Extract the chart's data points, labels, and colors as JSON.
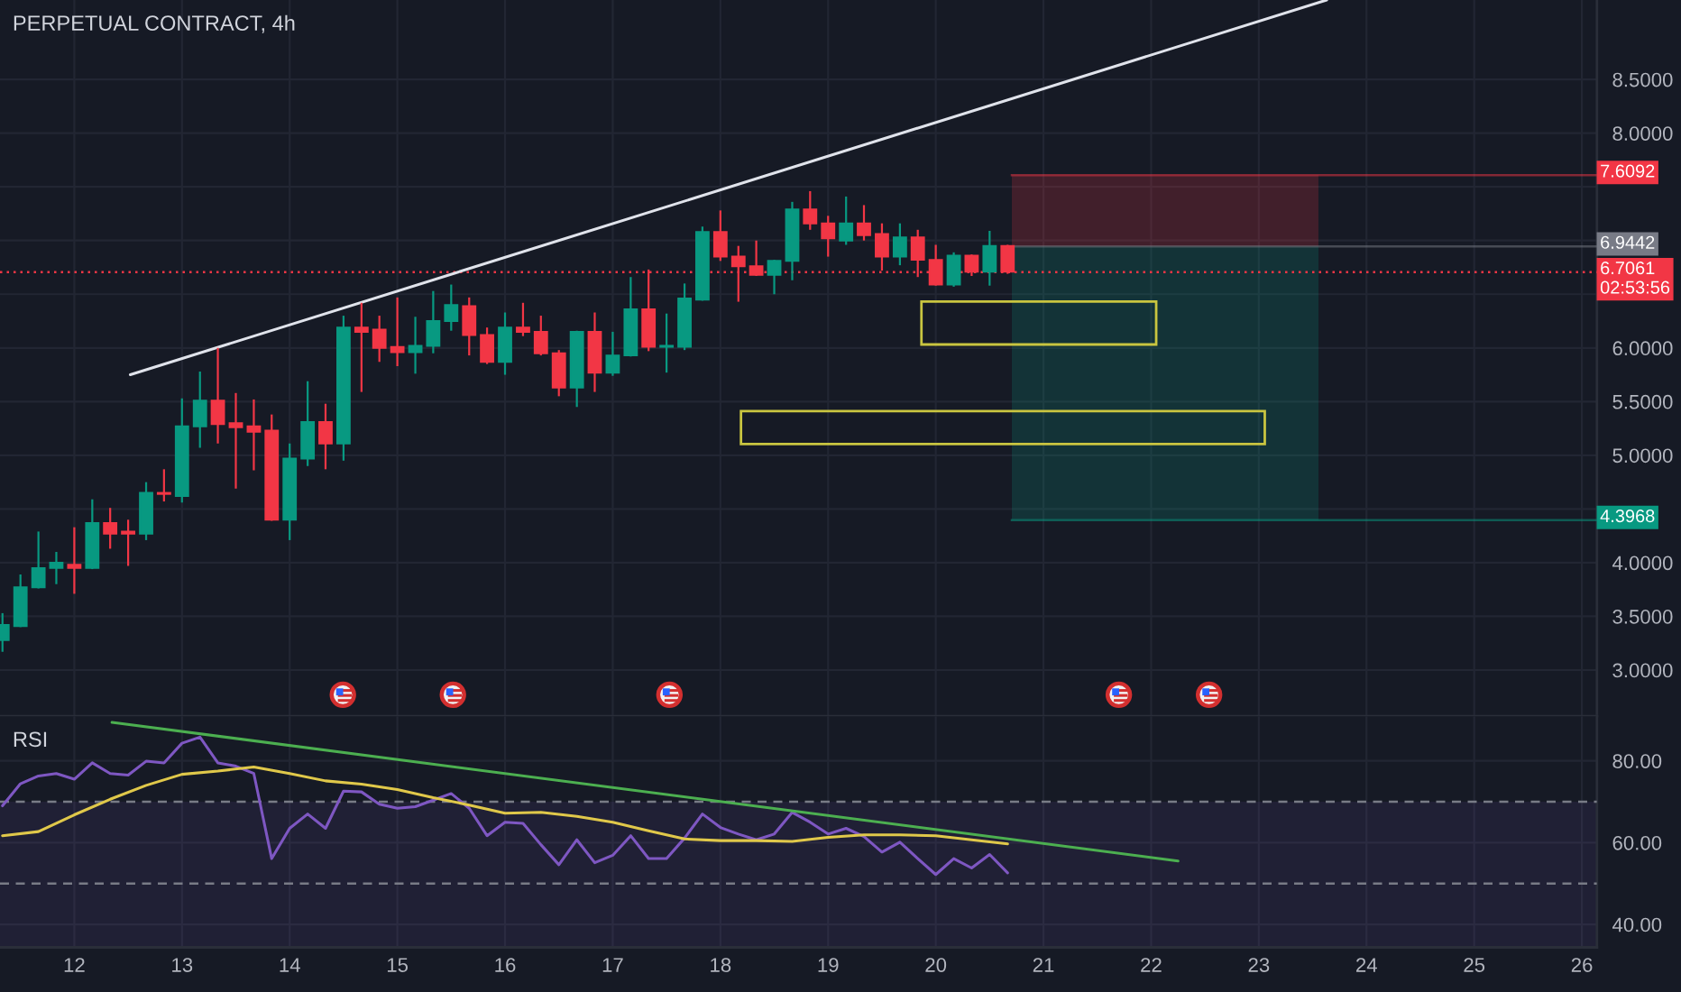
{
  "chart_data": [
    {
      "type": "candlestick",
      "title": "PERPETUAL CONTRACT, 4h",
      "x": [
        11.333,
        11.5,
        11.667,
        11.833,
        12,
        12.167,
        12.333,
        12.5,
        12.667,
        12.833,
        13,
        13.167,
        13.333,
        13.5,
        13.667,
        13.833,
        14,
        14.167,
        14.333,
        14.5,
        14.667,
        14.833,
        15,
        15.167,
        15.333,
        15.5,
        15.667,
        15.833,
        16,
        16.167,
        16.333,
        16.5,
        16.667,
        16.833,
        17,
        17.167,
        17.333,
        17.5,
        17.667,
        17.833,
        18,
        18.167,
        18.333,
        18.5,
        18.667,
        18.833,
        19,
        19.167,
        19.333,
        19.5,
        19.667,
        19.833,
        20,
        20.167,
        20.333,
        20.5,
        20.667
      ],
      "ohlc": [
        [
          3.28,
          3.53,
          3.17,
          3.42
        ],
        [
          3.41,
          3.89,
          3.4,
          3.77
        ],
        [
          3.77,
          4.29,
          3.76,
          3.95
        ],
        [
          3.95,
          4.1,
          3.8,
          4.0
        ],
        [
          3.98,
          4.33,
          3.71,
          3.95
        ],
        [
          3.95,
          4.59,
          3.94,
          4.37
        ],
        [
          4.37,
          4.51,
          4.13,
          4.27
        ],
        [
          4.29,
          4.4,
          3.97,
          4.27
        ],
        [
          4.27,
          4.75,
          4.21,
          4.65
        ],
        [
          4.65,
          4.87,
          4.57,
          4.64
        ],
        [
          4.62,
          5.53,
          4.56,
          5.27
        ],
        [
          5.27,
          5.78,
          5.07,
          5.51
        ],
        [
          5.51,
          6.0,
          5.11,
          5.29
        ],
        [
          5.3,
          5.58,
          4.69,
          5.26
        ],
        [
          5.27,
          5.52,
          4.86,
          5.22
        ],
        [
          5.23,
          5.38,
          4.39,
          4.4
        ],
        [
          4.4,
          5.11,
          4.21,
          4.97
        ],
        [
          4.97,
          5.69,
          4.9,
          5.31
        ],
        [
          5.31,
          5.48,
          4.87,
          5.11
        ],
        [
          5.11,
          6.3,
          4.95,
          6.19
        ],
        [
          6.19,
          6.42,
          5.59,
          6.15
        ],
        [
          6.17,
          6.3,
          5.87,
          6.0
        ],
        [
          6.01,
          6.47,
          5.83,
          5.96
        ],
        [
          5.96,
          6.29,
          5.76,
          6.02
        ],
        [
          6.02,
          6.53,
          5.95,
          6.25
        ],
        [
          6.25,
          6.59,
          6.16,
          6.4
        ],
        [
          6.39,
          6.47,
          5.93,
          6.12
        ],
        [
          6.12,
          6.19,
          5.85,
          5.87
        ],
        [
          5.87,
          6.33,
          5.75,
          6.19
        ],
        [
          6.19,
          6.42,
          6.11,
          6.15
        ],
        [
          6.15,
          6.3,
          5.93,
          5.95
        ],
        [
          5.95,
          5.98,
          5.55,
          5.63
        ],
        [
          5.63,
          6.16,
          5.45,
          6.15
        ],
        [
          6.15,
          6.33,
          5.59,
          5.77
        ],
        [
          5.77,
          6.15,
          5.74,
          5.93
        ],
        [
          5.93,
          6.66,
          5.92,
          6.36
        ],
        [
          6.36,
          6.73,
          5.97,
          6.01
        ],
        [
          6.01,
          6.32,
          5.77,
          6.02
        ],
        [
          6.01,
          6.6,
          5.98,
          6.46
        ],
        [
          6.45,
          7.13,
          6.44,
          7.08
        ],
        [
          7.08,
          7.28,
          6.81,
          6.85
        ],
        [
          6.85,
          6.95,
          6.43,
          6.76
        ],
        [
          6.76,
          7.0,
          6.67,
          6.68
        ],
        [
          6.68,
          6.82,
          6.5,
          6.81
        ],
        [
          6.81,
          7.36,
          6.63,
          7.29
        ],
        [
          7.29,
          7.46,
          7.1,
          7.16
        ],
        [
          7.16,
          7.23,
          6.85,
          7.02
        ],
        [
          7.0,
          7.41,
          6.96,
          7.16
        ],
        [
          7.16,
          7.33,
          7.0,
          7.05
        ],
        [
          7.06,
          7.16,
          6.72,
          6.85
        ],
        [
          6.85,
          7.16,
          6.77,
          7.03
        ],
        [
          7.03,
          7.1,
          6.66,
          6.82
        ],
        [
          6.82,
          6.96,
          6.58,
          6.59
        ],
        [
          6.59,
          6.89,
          6.57,
          6.86
        ],
        [
          6.86,
          6.87,
          6.67,
          6.71
        ],
        [
          6.71,
          7.09,
          6.58,
          6.95
        ],
        [
          6.95,
          6.96,
          6.69,
          6.71
        ]
      ],
      "colors": [
        "#089981",
        "#089981",
        "#089981",
        "#089981",
        "#f23645",
        "#089981",
        "#f23645",
        "#f23645",
        "#089981",
        "#f23645",
        "#089981",
        "#089981",
        "#f23645",
        "#f23645",
        "#f23645",
        "#f23645",
        "#089981",
        "#089981",
        "#f23645",
        "#089981",
        "#f23645",
        "#f23645",
        "#f23645",
        "#089981",
        "#089981",
        "#089981",
        "#f23645",
        "#f23645",
        "#089981",
        "#f23645",
        "#f23645",
        "#f23645",
        "#089981",
        "#f23645",
        "#089981",
        "#089981",
        "#f23645",
        "#089981",
        "#089981",
        "#089981",
        "#f23645",
        "#f23645",
        "#f23645",
        "#089981",
        "#089981",
        "#f23645",
        "#f23645",
        "#089981",
        "#f23645",
        "#f23645",
        "#089981",
        "#f23645",
        "#f23645",
        "#089981",
        "#f23645",
        "#089981",
        "#f23645"
      ],
      "series": [
        {
          "type": "line",
          "color": "#e0e3eb",
          "x": [
            12.52,
            23.63
          ],
          "values": [
            5.75,
            9.24
          ]
        }
      ],
      "xlim": [
        11.31,
        26.14
      ],
      "xticks": [
        12,
        13,
        14,
        15,
        16,
        17,
        18,
        19,
        20,
        21,
        22,
        23,
        24,
        25,
        26
      ],
      "ylim": [
        2.57,
        9.24
      ],
      "yticks": [
        {
          "value": 3,
          "label": "3.0000"
        },
        {
          "value": 3.5,
          "label": "3.5000"
        },
        {
          "value": 4,
          "label": "4.0000"
        },
        {
          "value": 4.5,
          "label": null
        },
        {
          "value": 5,
          "label": "5.0000"
        },
        {
          "value": 5.5,
          "label": "5.5000"
        },
        {
          "value": 6,
          "label": "6.0000"
        },
        {
          "value": 6.5,
          "label": null
        },
        {
          "value": 7,
          "label": null
        },
        {
          "value": 7.5,
          "label": null
        },
        {
          "value": 8,
          "label": "8.0000"
        },
        {
          "value": 8.5,
          "label": "8.5000"
        }
      ],
      "bands": [
        {
          "axis": "y",
          "from": 6.9442,
          "to": 7.6092,
          "color": "#f23645"
        },
        {
          "axis": "y",
          "from": 4.3968,
          "to": 6.9442,
          "color": "#089981"
        }
      ],
      "ref_lines": [
        {
          "axis": "y",
          "value": 7.6092,
          "label": "7.6092",
          "color": "#f23645"
        },
        {
          "axis": "y",
          "value": 6.9442,
          "label": "6.9442",
          "color": "#787b86"
        },
        {
          "axis": "y",
          "value": 6.7061,
          "label": "6.7061\n02:53:56",
          "color": "#f23645",
          "line_style": "dotted"
        },
        {
          "axis": "y",
          "value": 4.3968,
          "label": "4.3968",
          "color": "#089981"
        }
      ],
      "grid": true,
      "tick_labels": "y"
    },
    {
      "type": "line",
      "title": "RSI",
      "x": [
        11.333,
        11.5,
        11.667,
        11.833,
        12,
        12.167,
        12.333,
        12.5,
        12.667,
        12.833,
        13,
        13.167,
        13.333,
        13.5,
        13.667,
        13.833,
        14,
        14.167,
        14.333,
        14.5,
        14.667,
        14.833,
        15,
        15.167,
        15.333,
        15.5,
        15.667,
        15.833,
        16,
        16.167,
        16.333,
        16.5,
        16.667,
        16.833,
        17,
        17.167,
        17.333,
        17.5,
        17.667,
        17.833,
        18,
        18.167,
        18.333,
        18.5,
        18.667,
        18.833,
        19,
        19.167,
        19.333,
        19.5,
        19.667,
        19.833,
        20,
        20.167,
        20.333,
        20.5,
        20.667
      ],
      "series": [
        {
          "color": "#7e57c2",
          "values": [
            69.0,
            74.4,
            76.3,
            76.9,
            75.5,
            79.5,
            76.9,
            76.5,
            79.9,
            79.5,
            84.3,
            85.8,
            79.5,
            78.7,
            76.9,
            56.1,
            63.5,
            67.0,
            63.5,
            72.6,
            72.4,
            69.4,
            68.4,
            68.8,
            70.4,
            72.0,
            68.4,
            61.7,
            65.0,
            64.7,
            59.5,
            54.6,
            60.7,
            55.1,
            56.9,
            61.7,
            56.1,
            56.1,
            61.1,
            67.0,
            63.7,
            62.1,
            60.7,
            62.1,
            67.4,
            65.0,
            62.1,
            63.5,
            61.5,
            57.7,
            60.1,
            56.1,
            52.2,
            56.1,
            53.8,
            57.1,
            52.6
          ]
        },
        {
          "color": "#e0c84a",
          "x": [
            11.333,
            11.667,
            12,
            12.333,
            12.667,
            13,
            13.333,
            13.667,
            14,
            14.333,
            14.667,
            15,
            15.333,
            15.667,
            16,
            16.333,
            16.667,
            17,
            17.333,
            17.667,
            18,
            18.333,
            18.667,
            19,
            19.333,
            19.667,
            20,
            20.333,
            20.667
          ],
          "values": [
            61.7,
            62.7,
            66.8,
            70.6,
            74.0,
            76.7,
            77.5,
            78.5,
            76.9,
            75.1,
            74.3,
            73.0,
            71.0,
            69.2,
            67.2,
            67.4,
            66.4,
            65.0,
            62.9,
            60.9,
            60.5,
            60.5,
            60.3,
            61.3,
            61.9,
            61.9,
            61.7,
            60.7,
            59.7
          ]
        },
        {
          "color": "#4caf50",
          "x": [
            12.35,
            22.25
          ],
          "values": [
            89.4,
            55.5
          ]
        }
      ],
      "xlim": [
        11.31,
        26.14
      ],
      "xticks": [
        12,
        13,
        14,
        15,
        16,
        17,
        18,
        19,
        20,
        21,
        22,
        23,
        24,
        25,
        26
      ],
      "ylim": [
        34.4,
        90.9
      ],
      "yticks": [
        {
          "value": 40,
          "label": "40.00"
        },
        {
          "value": 60,
          "label": "60.00"
        },
        {
          "value": 80,
          "label": "80.00"
        }
      ],
      "bands": [
        {
          "axis": "y",
          "from": 34.4,
          "to": 70,
          "color": "#7e57c2"
        }
      ],
      "ref_lines": [
        {
          "axis": "y",
          "value": 70,
          "color": "#787b86",
          "line_style": "dashed"
        },
        {
          "axis": "y",
          "value": 50,
          "color": "#787b86",
          "line_style": "dashed"
        }
      ],
      "grid": true
    }
  ]
}
